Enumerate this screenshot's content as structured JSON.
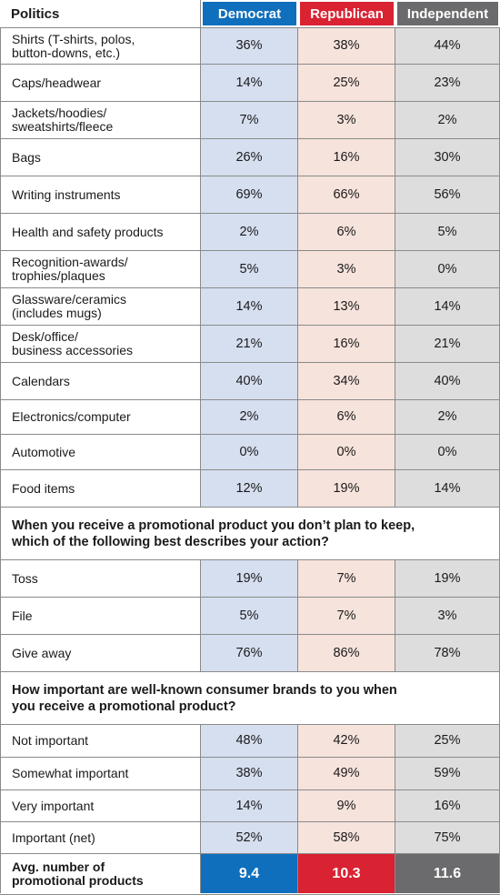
{
  "header": {
    "title": "Politics",
    "columns": [
      {
        "label": "Democrat",
        "color": "#0f6fbd"
      },
      {
        "label": "Republican",
        "color": "#d92232"
      },
      {
        "label": "Independent",
        "color": "#6b6b6d"
      }
    ]
  },
  "cell_colors": {
    "democrat": "#d6dff0",
    "republican": "#f6e3dc",
    "independent": "#dddddd"
  },
  "product_rows": [
    {
      "label": "Shirts (T-shirts, polos,\nbutton-downs, etc.)",
      "values": [
        "36%",
        "38%",
        "44%"
      ]
    },
    {
      "label": "Caps/headwear",
      "values": [
        "14%",
        "25%",
        "23%"
      ]
    },
    {
      "label": "Jackets/hoodies/\nsweatshirts/fleece",
      "values": [
        "7%",
        "3%",
        "2%"
      ]
    },
    {
      "label": "Bags",
      "values": [
        "26%",
        "16%",
        "30%"
      ]
    },
    {
      "label": "Writing instruments",
      "values": [
        "69%",
        "66%",
        "56%"
      ]
    },
    {
      "label": "Health and safety products",
      "values": [
        "2%",
        "6%",
        "5%"
      ]
    },
    {
      "label": "Recognition-awards/\ntrophies/plaques",
      "values": [
        "5%",
        "3%",
        "0%"
      ]
    },
    {
      "label": "Glassware/ceramics\n(includes mugs)",
      "values": [
        "14%",
        "13%",
        "14%"
      ]
    },
    {
      "label": "Desk/office/\nbusiness accessories",
      "values": [
        "21%",
        "16%",
        "21%"
      ]
    },
    {
      "label": "Calendars",
      "values": [
        "40%",
        "34%",
        "40%"
      ]
    },
    {
      "label": "Electronics/computer",
      "values": [
        "2%",
        "6%",
        "2%"
      ]
    },
    {
      "label": "Automotive",
      "values": [
        "0%",
        "0%",
        "0%"
      ]
    },
    {
      "label": "Food items",
      "values": [
        "12%",
        "19%",
        "14%"
      ]
    }
  ],
  "section_keep": {
    "question": "When you receive a promotional product you don’t plan to keep,\nwhich of the following best describes your action?",
    "rows": [
      {
        "label": "Toss",
        "values": [
          "19%",
          "7%",
          "19%"
        ]
      },
      {
        "label": "File",
        "values": [
          "5%",
          "7%",
          "3%"
        ]
      },
      {
        "label": "Give away",
        "values": [
          "76%",
          "86%",
          "78%"
        ]
      }
    ]
  },
  "section_brands": {
    "question": "How important are well-known consumer brands to you when\nyou receive a promotional product?",
    "rows": [
      {
        "label": "Not important",
        "values": [
          "48%",
          "42%",
          "25%"
        ]
      },
      {
        "label": "Somewhat important",
        "values": [
          "38%",
          "49%",
          "59%"
        ]
      },
      {
        "label": "Very important",
        "values": [
          "14%",
          "9%",
          "16%"
        ]
      },
      {
        "label": "Important (net)",
        "values": [
          "52%",
          "58%",
          "75%"
        ]
      }
    ]
  },
  "average": {
    "label": "Avg. number of\npromotional products",
    "values": [
      "9.4",
      "10.3",
      "11.6"
    ]
  }
}
